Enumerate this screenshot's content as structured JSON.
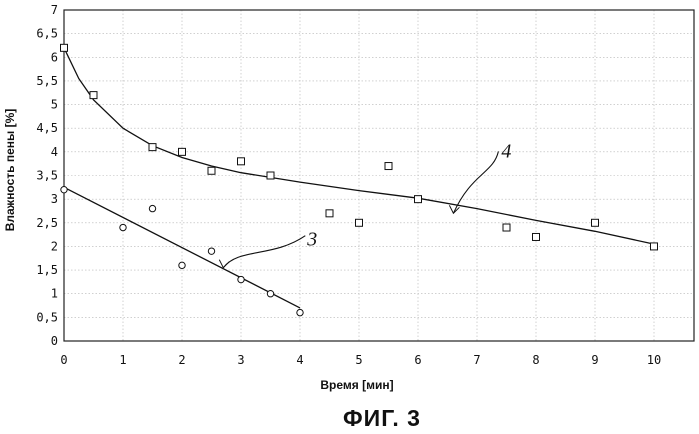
{
  "chart_data": {
    "type": "scatter",
    "caption": "ФИГ. 3",
    "xlabel": "Время [мин]",
    "ylabel": "Влажность пены [%]",
    "xlim": [
      0,
      10
    ],
    "ylim": [
      0,
      7
    ],
    "x_ticks": [
      "0",
      "1",
      "2",
      "3",
      "4",
      "5",
      "6",
      "7",
      "8",
      "9",
      "10"
    ],
    "y_ticks": [
      "0",
      "0,5",
      "1",
      "1,5",
      "2",
      "2,5",
      "3",
      "3,5",
      "4",
      "4,5",
      "5",
      "5,5",
      "6",
      "6,5",
      "7"
    ],
    "grid": true,
    "series": [
      {
        "name": "4",
        "marker": "square",
        "points": [
          [
            0,
            6.2
          ],
          [
            0.5,
            5.2
          ],
          [
            1.5,
            4.1
          ],
          [
            2,
            4.0
          ],
          [
            2.5,
            3.6
          ],
          [
            3,
            3.8
          ],
          [
            3.5,
            3.5
          ],
          [
            4.5,
            2.7
          ],
          [
            5,
            2.5
          ],
          [
            5.5,
            3.7
          ],
          [
            6,
            3.0
          ],
          [
            7.5,
            2.4
          ],
          [
            8,
            2.2
          ],
          [
            9,
            2.5
          ],
          [
            10,
            2.0
          ]
        ],
        "trendline": [
          [
            0,
            6.2
          ],
          [
            0.25,
            5.55
          ],
          [
            0.5,
            5.1
          ],
          [
            1,
            4.5
          ],
          [
            1.5,
            4.13
          ],
          [
            2,
            3.88
          ],
          [
            2.5,
            3.7
          ],
          [
            3,
            3.56
          ],
          [
            4,
            3.36
          ],
          [
            5,
            3.18
          ],
          [
            6,
            3.02
          ],
          [
            7,
            2.8
          ],
          [
            8,
            2.55
          ],
          [
            9,
            2.32
          ],
          [
            10,
            2.05
          ]
        ]
      },
      {
        "name": "3",
        "marker": "circle",
        "points": [
          [
            0,
            3.2
          ],
          [
            1,
            2.4
          ],
          [
            1.5,
            2.8
          ],
          [
            2,
            1.6
          ],
          [
            2.5,
            1.9
          ],
          [
            3,
            1.3
          ],
          [
            3.5,
            1.0
          ],
          [
            4,
            0.6
          ]
        ],
        "trendline": [
          [
            0,
            3.25
          ],
          [
            4,
            0.7
          ]
        ]
      }
    ],
    "annotations": [
      {
        "label": "4",
        "target": [
          6.6,
          2.7
        ]
      },
      {
        "label": "3",
        "target": [
          2.7,
          1.55
        ]
      }
    ]
  }
}
